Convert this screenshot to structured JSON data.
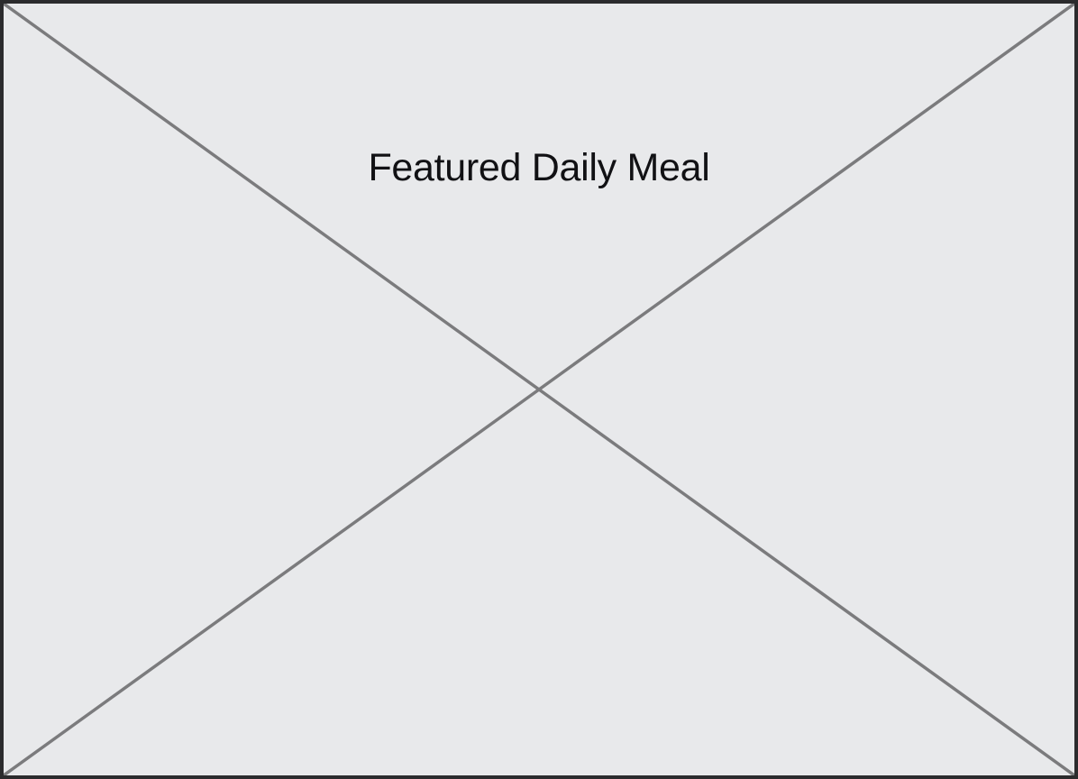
{
  "placeholder": {
    "caption": "Featured Daily Meal",
    "icon": "image-placeholder-cross-icon"
  },
  "colors": {
    "background": "#e8e9eb",
    "border": "#2b2b2d",
    "cross_lines": "#7b7b7d",
    "caption_text": "#111114"
  }
}
